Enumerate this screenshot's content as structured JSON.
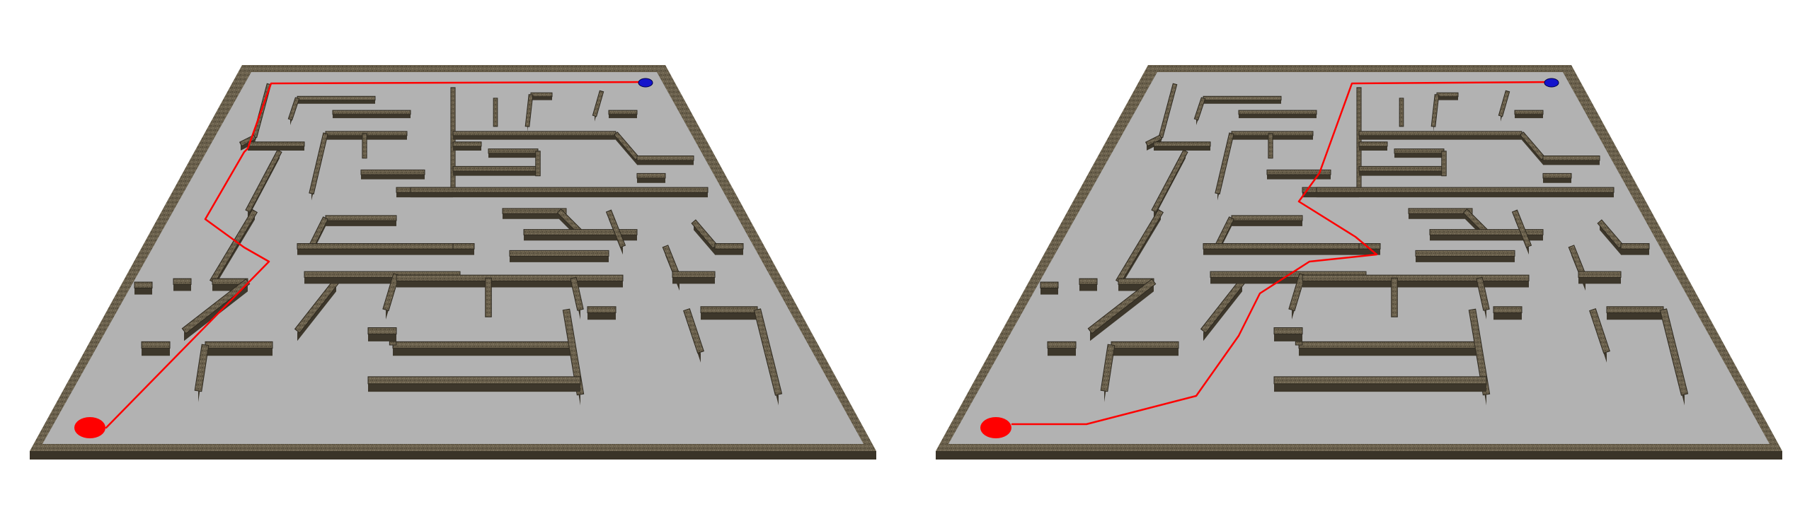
{
  "colors": {
    "background": "#ffffff",
    "floor": "#b2b2b2",
    "wall_top": "#6f6551",
    "wall_dark": "#3d372b",
    "path": "#ff0000",
    "start_marker": "#ff0000",
    "goal_marker": "#1414cc"
  },
  "panels": [
    {
      "name": "left-maze",
      "route": "left-route"
    },
    {
      "name": "right-maze",
      "route": "right-route"
    }
  ]
}
